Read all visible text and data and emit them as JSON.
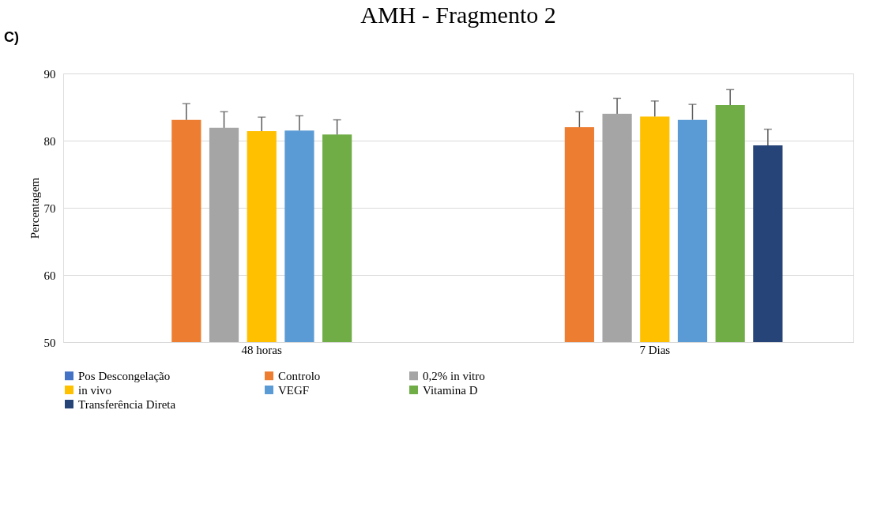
{
  "chart_data": {
    "type": "bar",
    "title": "AMH - Fragmento 2",
    "ylabel": "Percentagem",
    "categories": [
      "48 horas",
      "7 Dias"
    ],
    "series": [
      {
        "name": "Pos Descongelação",
        "color": "#4472c4",
        "values": [
          null,
          null
        ]
      },
      {
        "name": "Controlo",
        "color": "#ed7d31",
        "values": [
          83.1,
          82.0
        ],
        "errors": [
          2.4,
          2.3
        ]
      },
      {
        "name": "0,2% in vitro",
        "color": "#a5a5a5",
        "values": [
          81.9,
          84.0
        ],
        "errors": [
          2.4,
          2.3
        ]
      },
      {
        "name": "in vivo",
        "color": "#ffc000",
        "values": [
          81.4,
          83.6
        ],
        "errors": [
          2.1,
          2.3
        ]
      },
      {
        "name": "VEGF",
        "color": "#5b9bd5",
        "values": [
          81.5,
          83.1
        ],
        "errors": [
          2.2,
          2.3
        ]
      },
      {
        "name": "Vitamina D",
        "color": "#70ad47",
        "values": [
          80.9,
          85.3
        ],
        "errors": [
          2.2,
          2.3
        ]
      },
      {
        "name": "Transferência Direta",
        "color": "#264478",
        "values": [
          null,
          79.3
        ],
        "errors": [
          null,
          2.4
        ]
      }
    ],
    "ylim": [
      50,
      90
    ],
    "yticks": [
      50,
      60,
      70,
      80,
      90
    ],
    "grid": "y",
    "legend": "bottom",
    "annotations": [
      "C)"
    ]
  }
}
